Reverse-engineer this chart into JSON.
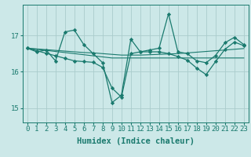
{
  "bg_color": "#cce8e8",
  "grid_color": "#aacccc",
  "line_color": "#1a7a6e",
  "xlabel": "Humidex (Indice chaleur)",
  "xlabel_fontsize": 7.5,
  "tick_fontsize": 6.5,
  "xlim": [
    -0.5,
    23.5
  ],
  "ylim": [
    14.6,
    17.85
  ],
  "yticks": [
    15,
    16,
    17
  ],
  "xticks": [
    0,
    1,
    2,
    3,
    4,
    5,
    6,
    7,
    8,
    9,
    10,
    11,
    12,
    13,
    14,
    15,
    16,
    17,
    18,
    19,
    20,
    21,
    22,
    23
  ],
  "series1_x": [
    0,
    1,
    2,
    3,
    4,
    5,
    6,
    7,
    8,
    9,
    10,
    11,
    12,
    13,
    14,
    15,
    16,
    17,
    18,
    19,
    20,
    21,
    22,
    23
  ],
  "series1_y": [
    16.65,
    16.55,
    16.6,
    16.3,
    17.1,
    17.15,
    16.75,
    16.5,
    16.25,
    15.15,
    15.35,
    16.9,
    16.55,
    16.6,
    16.65,
    17.6,
    16.55,
    16.5,
    16.3,
    16.25,
    16.45,
    16.8,
    16.95,
    16.75
  ],
  "series2_x": [
    0,
    1,
    2,
    3,
    4,
    5,
    6,
    7,
    8,
    9,
    10,
    11,
    12,
    13,
    14,
    15,
    16,
    17,
    18,
    19,
    20,
    21,
    22,
    23
  ],
  "series2_y": [
    16.65,
    16.63,
    16.61,
    16.59,
    16.57,
    16.55,
    16.53,
    16.52,
    16.5,
    16.48,
    16.46,
    16.46,
    16.46,
    16.47,
    16.48,
    16.49,
    16.5,
    16.52,
    16.54,
    16.56,
    16.58,
    16.6,
    16.62,
    16.64
  ],
  "series3_x": [
    0,
    1,
    2,
    3,
    4,
    5,
    6,
    7,
    8,
    9,
    10,
    11,
    12,
    13,
    14,
    15,
    16,
    17,
    18,
    19,
    20,
    21,
    22,
    23
  ],
  "series3_y": [
    16.65,
    16.62,
    16.59,
    16.56,
    16.53,
    16.5,
    16.47,
    16.44,
    16.41,
    16.38,
    16.38,
    16.38,
    16.38,
    16.38,
    16.38,
    16.38,
    16.38,
    16.38,
    16.38,
    16.38,
    16.38,
    16.38,
    16.38,
    16.38
  ],
  "series4_x": [
    0,
    1,
    2,
    3,
    4,
    5,
    6,
    7,
    8,
    9,
    10,
    11,
    12,
    13,
    14,
    15,
    16,
    17,
    18,
    19,
    20,
    21,
    22,
    23
  ],
  "series4_y": [
    16.65,
    16.58,
    16.51,
    16.44,
    16.37,
    16.3,
    16.28,
    16.26,
    16.12,
    15.55,
    15.3,
    16.5,
    16.55,
    16.55,
    16.55,
    16.5,
    16.42,
    16.32,
    16.1,
    15.92,
    16.28,
    16.62,
    16.82,
    16.72
  ]
}
